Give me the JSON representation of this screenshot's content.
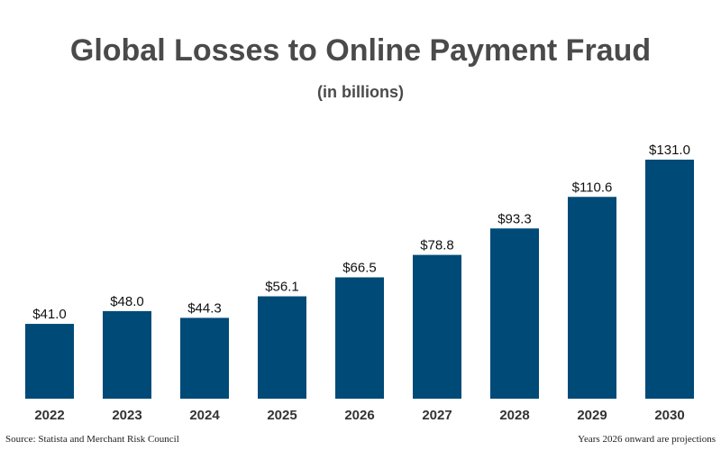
{
  "colors": {
    "bar": "#004a77",
    "text": "#4a4a4a",
    "value_label": "#111111",
    "tick_label": "#333333"
  },
  "source_note": "Source: Statista and Merchant Risk Council",
  "projection_note": "Years 2026 onward are projections",
  "chart_data": {
    "type": "bar",
    "title": "Global Losses to Online Payment Fraud",
    "subtitle": "(in billions)",
    "xlabel": "",
    "ylabel": "",
    "categories": [
      "2022",
      "2023",
      "2024",
      "2025",
      "2026",
      "2027",
      "2028",
      "2029",
      "2030"
    ],
    "values": [
      41.0,
      48.0,
      44.3,
      56.1,
      66.5,
      78.8,
      93.3,
      110.6,
      131.0
    ],
    "value_labels": [
      "$41.0",
      "$48.0",
      "$44.3",
      "$56.1",
      "$66.5",
      "$78.8",
      "$93.3",
      "$110.6",
      "$131.0"
    ],
    "ylim": [
      0,
      131.0
    ],
    "grid": false,
    "legend": "none"
  }
}
